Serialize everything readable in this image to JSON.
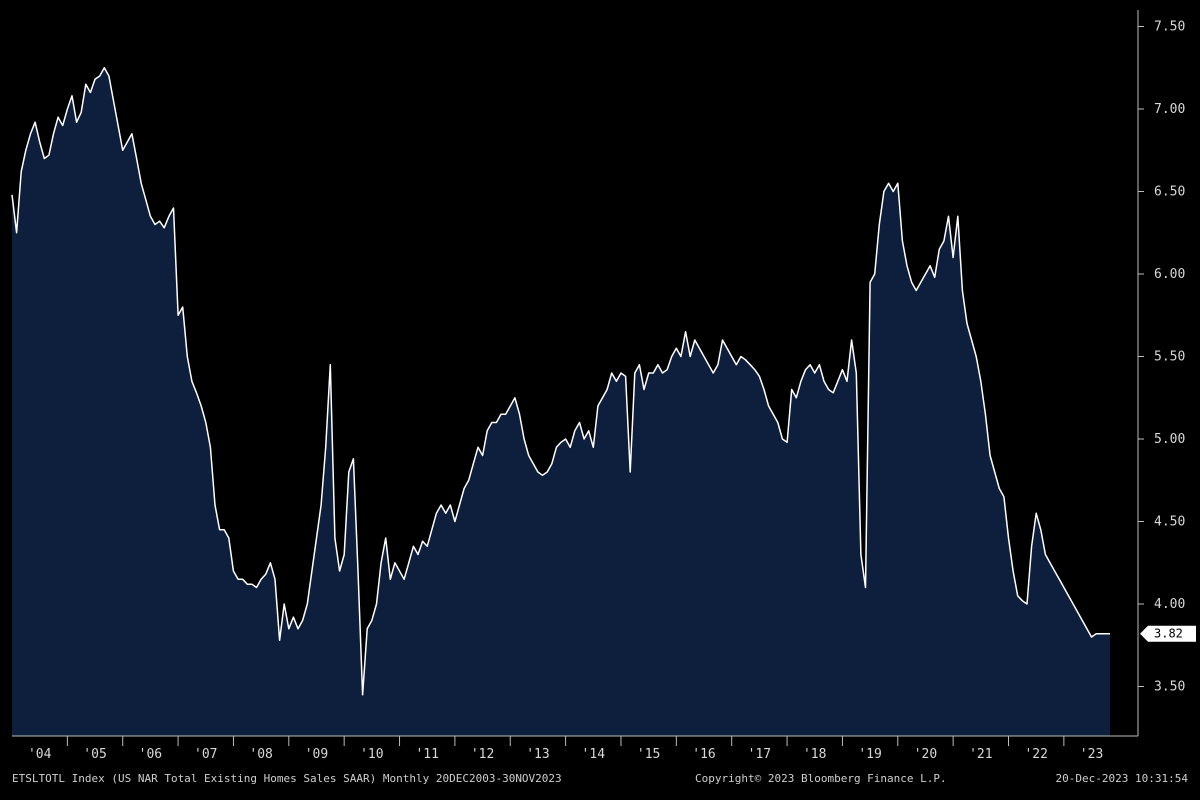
{
  "chart_data": {
    "type": "area",
    "title": "",
    "xlabel": "",
    "ylabel": "",
    "x_start": "2004-01",
    "x_end": "2023-11",
    "y_ticks": [
      "3.50",
      "4.00",
      "4.50",
      "5.00",
      "5.50",
      "6.00",
      "6.50",
      "7.00",
      "7.50"
    ],
    "ylim": [
      3.2,
      7.6
    ],
    "x_tick_labels": [
      "'04",
      "'05",
      "'06",
      "'07",
      "'08",
      "'09",
      "'10",
      "'11",
      "'12",
      "'13",
      "'14",
      "'15",
      "'16",
      "'17",
      "'18",
      "'19",
      "'20",
      "'21",
      "'22",
      "'23"
    ],
    "grid": false,
    "line_color": "#ffffff",
    "fill_color": "#0d1f3d",
    "last_value_label": "3.82",
    "points": [
      [
        "2004-01",
        6.48
      ],
      [
        "2004-02",
        6.25
      ],
      [
        "2004-03",
        6.62
      ],
      [
        "2004-04",
        6.75
      ],
      [
        "2004-05",
        6.85
      ],
      [
        "2004-06",
        6.92
      ],
      [
        "2004-07",
        6.8
      ],
      [
        "2004-08",
        6.7
      ],
      [
        "2004-09",
        6.72
      ],
      [
        "2004-10",
        6.85
      ],
      [
        "2004-11",
        6.95
      ],
      [
        "2004-12",
        6.9
      ],
      [
        "2005-01",
        7.0
      ],
      [
        "2005-02",
        7.08
      ],
      [
        "2005-03",
        6.92
      ],
      [
        "2005-04",
        6.98
      ],
      [
        "2005-05",
        7.15
      ],
      [
        "2005-06",
        7.1
      ],
      [
        "2005-07",
        7.18
      ],
      [
        "2005-08",
        7.2
      ],
      [
        "2005-09",
        7.25
      ],
      [
        "2005-10",
        7.2
      ],
      [
        "2005-11",
        7.05
      ],
      [
        "2005-12",
        6.9
      ],
      [
        "2006-01",
        6.75
      ],
      [
        "2006-02",
        6.8
      ],
      [
        "2006-03",
        6.85
      ],
      [
        "2006-04",
        6.7
      ],
      [
        "2006-05",
        6.55
      ],
      [
        "2006-06",
        6.45
      ],
      [
        "2006-07",
        6.35
      ],
      [
        "2006-08",
        6.3
      ],
      [
        "2006-09",
        6.32
      ],
      [
        "2006-10",
        6.28
      ],
      [
        "2006-11",
        6.35
      ],
      [
        "2006-12",
        6.4
      ],
      [
        "2007-01",
        5.75
      ],
      [
        "2007-02",
        5.8
      ],
      [
        "2007-03",
        5.5
      ],
      [
        "2007-04",
        5.35
      ],
      [
        "2007-05",
        5.28
      ],
      [
        "2007-06",
        5.2
      ],
      [
        "2007-07",
        5.1
      ],
      [
        "2007-08",
        4.95
      ],
      [
        "2007-09",
        4.6
      ],
      [
        "2007-10",
        4.45
      ],
      [
        "2007-11",
        4.45
      ],
      [
        "2007-12",
        4.4
      ],
      [
        "2008-01",
        4.2
      ],
      [
        "2008-02",
        4.15
      ],
      [
        "2008-03",
        4.15
      ],
      [
        "2008-04",
        4.12
      ],
      [
        "2008-05",
        4.12
      ],
      [
        "2008-06",
        4.1
      ],
      [
        "2008-07",
        4.15
      ],
      [
        "2008-08",
        4.18
      ],
      [
        "2008-09",
        4.25
      ],
      [
        "2008-10",
        4.15
      ],
      [
        "2008-11",
        3.78
      ],
      [
        "2008-12",
        4.0
      ],
      [
        "2009-01",
        3.85
      ],
      [
        "2009-02",
        3.92
      ],
      [
        "2009-03",
        3.85
      ],
      [
        "2009-04",
        3.9
      ],
      [
        "2009-05",
        4.0
      ],
      [
        "2009-06",
        4.2
      ],
      [
        "2009-07",
        4.4
      ],
      [
        "2009-08",
        4.6
      ],
      [
        "2009-09",
        4.95
      ],
      [
        "2009-10",
        5.45
      ],
      [
        "2009-11",
        4.4
      ],
      [
        "2009-12",
        4.2
      ],
      [
        "2010-01",
        4.3
      ],
      [
        "2010-02",
        4.8
      ],
      [
        "2010-03",
        4.88
      ],
      [
        "2010-04",
        4.2
      ],
      [
        "2010-05",
        3.45
      ],
      [
        "2010-06",
        3.85
      ],
      [
        "2010-07",
        3.9
      ],
      [
        "2010-08",
        4.0
      ],
      [
        "2010-09",
        4.25
      ],
      [
        "2010-10",
        4.4
      ],
      [
        "2010-11",
        4.15
      ],
      [
        "2010-12",
        4.25
      ],
      [
        "2011-01",
        4.2
      ],
      [
        "2011-02",
        4.15
      ],
      [
        "2011-03",
        4.25
      ],
      [
        "2011-04",
        4.35
      ],
      [
        "2011-05",
        4.3
      ],
      [
        "2011-06",
        4.38
      ],
      [
        "2011-07",
        4.35
      ],
      [
        "2011-08",
        4.45
      ],
      [
        "2011-09",
        4.55
      ],
      [
        "2011-10",
        4.6
      ],
      [
        "2011-11",
        4.55
      ],
      [
        "2011-12",
        4.6
      ],
      [
        "2012-01",
        4.5
      ],
      [
        "2012-02",
        4.6
      ],
      [
        "2012-03",
        4.7
      ],
      [
        "2012-04",
        4.75
      ],
      [
        "2012-05",
        4.85
      ],
      [
        "2012-06",
        4.95
      ],
      [
        "2012-07",
        4.9
      ],
      [
        "2012-08",
        5.05
      ],
      [
        "2012-09",
        5.1
      ],
      [
        "2012-10",
        5.1
      ],
      [
        "2012-11",
        5.15
      ],
      [
        "2012-12",
        5.15
      ],
      [
        "2013-01",
        5.2
      ],
      [
        "2013-02",
        5.25
      ],
      [
        "2013-03",
        5.15
      ],
      [
        "2013-04",
        5.0
      ],
      [
        "2013-05",
        4.9
      ],
      [
        "2013-06",
        4.85
      ],
      [
        "2013-07",
        4.8
      ],
      [
        "2013-08",
        4.78
      ],
      [
        "2013-09",
        4.8
      ],
      [
        "2013-10",
        4.85
      ],
      [
        "2013-11",
        4.95
      ],
      [
        "2013-12",
        4.98
      ],
      [
        "2014-01",
        5.0
      ],
      [
        "2014-02",
        4.95
      ],
      [
        "2014-03",
        5.05
      ],
      [
        "2014-04",
        5.1
      ],
      [
        "2014-05",
        5.0
      ],
      [
        "2014-06",
        5.05
      ],
      [
        "2014-07",
        4.95
      ],
      [
        "2014-08",
        5.2
      ],
      [
        "2014-09",
        5.25
      ],
      [
        "2014-10",
        5.3
      ],
      [
        "2014-11",
        5.4
      ],
      [
        "2014-12",
        5.35
      ],
      [
        "2015-01",
        5.4
      ],
      [
        "2015-02",
        5.38
      ],
      [
        "2015-03",
        4.8
      ],
      [
        "2015-04",
        5.4
      ],
      [
        "2015-05",
        5.45
      ],
      [
        "2015-06",
        5.3
      ],
      [
        "2015-07",
        5.4
      ],
      [
        "2015-08",
        5.4
      ],
      [
        "2015-09",
        5.45
      ],
      [
        "2015-10",
        5.4
      ],
      [
        "2015-11",
        5.42
      ],
      [
        "2015-12",
        5.5
      ],
      [
        "2016-01",
        5.55
      ],
      [
        "2016-02",
        5.5
      ],
      [
        "2016-03",
        5.65
      ],
      [
        "2016-04",
        5.5
      ],
      [
        "2016-05",
        5.6
      ],
      [
        "2016-06",
        5.55
      ],
      [
        "2016-07",
        5.5
      ],
      [
        "2016-08",
        5.45
      ],
      [
        "2016-09",
        5.4
      ],
      [
        "2016-10",
        5.45
      ],
      [
        "2016-11",
        5.6
      ],
      [
        "2016-12",
        5.55
      ],
      [
        "2017-01",
        5.5
      ],
      [
        "2017-02",
        5.45
      ],
      [
        "2017-03",
        5.5
      ],
      [
        "2017-04",
        5.48
      ],
      [
        "2017-05",
        5.45
      ],
      [
        "2017-06",
        5.42
      ],
      [
        "2017-07",
        5.38
      ],
      [
        "2017-08",
        5.3
      ],
      [
        "2017-09",
        5.2
      ],
      [
        "2017-10",
        5.15
      ],
      [
        "2017-11",
        5.1
      ],
      [
        "2017-12",
        5.0
      ],
      [
        "2018-01",
        4.98
      ],
      [
        "2018-02",
        5.3
      ],
      [
        "2018-03",
        5.25
      ],
      [
        "2018-04",
        5.35
      ],
      [
        "2018-05",
        5.42
      ],
      [
        "2018-06",
        5.45
      ],
      [
        "2018-07",
        5.4
      ],
      [
        "2018-08",
        5.45
      ],
      [
        "2018-09",
        5.35
      ],
      [
        "2018-10",
        5.3
      ],
      [
        "2018-11",
        5.28
      ],
      [
        "2018-12",
        5.35
      ],
      [
        "2019-01",
        5.42
      ],
      [
        "2019-02",
        5.35
      ],
      [
        "2019-03",
        5.6
      ],
      [
        "2019-04",
        5.4
      ],
      [
        "2019-05",
        4.3
      ],
      [
        "2019-06",
        4.1
      ],
      [
        "2019-07",
        5.95
      ],
      [
        "2019-08",
        6.0
      ],
      [
        "2019-09",
        6.3
      ],
      [
        "2019-10",
        6.5
      ],
      [
        "2019-11",
        6.55
      ],
      [
        "2019-12",
        6.5
      ],
      [
        "2020-01",
        6.55
      ],
      [
        "2020-02",
        6.2
      ],
      [
        "2020-03",
        6.05
      ],
      [
        "2020-04",
        5.95
      ],
      [
        "2020-05",
        5.9
      ],
      [
        "2020-06",
        5.95
      ],
      [
        "2020-07",
        6.0
      ],
      [
        "2020-08",
        6.05
      ],
      [
        "2020-09",
        5.98
      ],
      [
        "2020-10",
        6.15
      ],
      [
        "2020-11",
        6.2
      ],
      [
        "2020-12",
        6.35
      ],
      [
        "2021-01",
        6.1
      ],
      [
        "2021-02",
        6.35
      ],
      [
        "2021-03",
        5.9
      ],
      [
        "2021-04",
        5.7
      ],
      [
        "2021-05",
        5.6
      ],
      [
        "2021-06",
        5.5
      ],
      [
        "2021-07",
        5.35
      ],
      [
        "2021-08",
        5.15
      ],
      [
        "2021-09",
        4.9
      ],
      [
        "2021-10",
        4.8
      ],
      [
        "2021-11",
        4.7
      ],
      [
        "2021-12",
        4.65
      ],
      [
        "2022-01",
        4.4
      ],
      [
        "2022-02",
        4.2
      ],
      [
        "2022-03",
        4.05
      ],
      [
        "2022-04",
        4.02
      ],
      [
        "2022-05",
        4.0
      ],
      [
        "2022-06",
        4.35
      ],
      [
        "2022-07",
        4.55
      ],
      [
        "2022-08",
        4.45
      ],
      [
        "2022-09",
        4.3
      ],
      [
        "2022-10",
        4.25
      ],
      [
        "2022-11",
        4.2
      ],
      [
        "2022-12",
        4.15
      ],
      [
        "2023-01",
        4.1
      ],
      [
        "2023-02",
        4.05
      ],
      [
        "2023-03",
        4.0
      ],
      [
        "2023-04",
        3.95
      ],
      [
        "2023-05",
        3.9
      ],
      [
        "2023-06",
        3.85
      ],
      [
        "2023-07",
        3.8
      ],
      [
        "2023-08",
        3.82
      ],
      [
        "2023-09",
        3.82
      ],
      [
        "2023-10",
        3.82
      ],
      [
        "2023-11",
        3.82
      ]
    ]
  },
  "footer": {
    "left": "ETSLTOTL Index (US NAR Total Existing Homes Sales SAAR) Monthly 20DEC2003-30NOV2023",
    "center": "Copyright© 2023 Bloomberg Finance L.P.",
    "right": "20-Dec-2023 10:31:54"
  }
}
